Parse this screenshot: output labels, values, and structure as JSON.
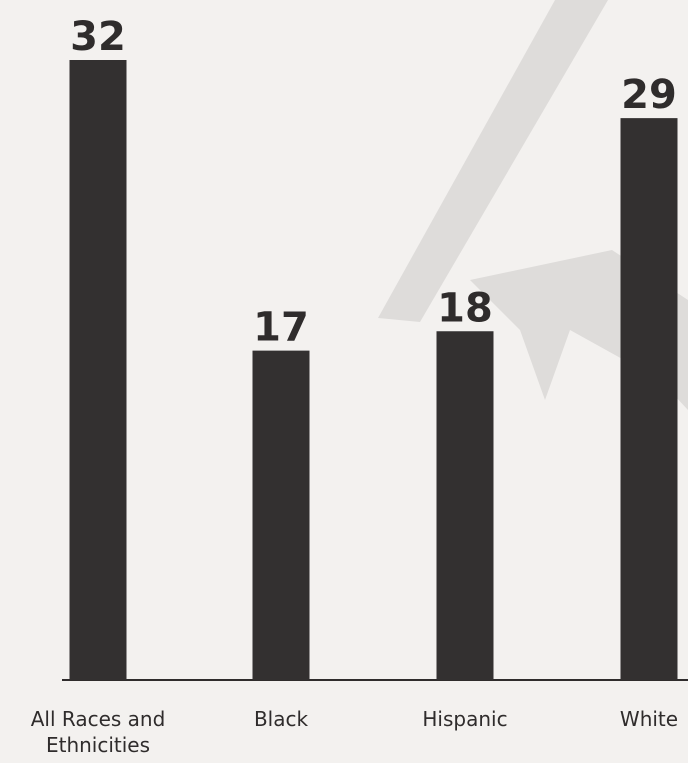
{
  "chart_data": {
    "type": "bar",
    "categories": [
      "All Races and Ethnicities",
      "Black",
      "Hispanic",
      "White"
    ],
    "values": [
      32,
      17,
      18,
      29
    ],
    "color": "#333030"
  }
}
